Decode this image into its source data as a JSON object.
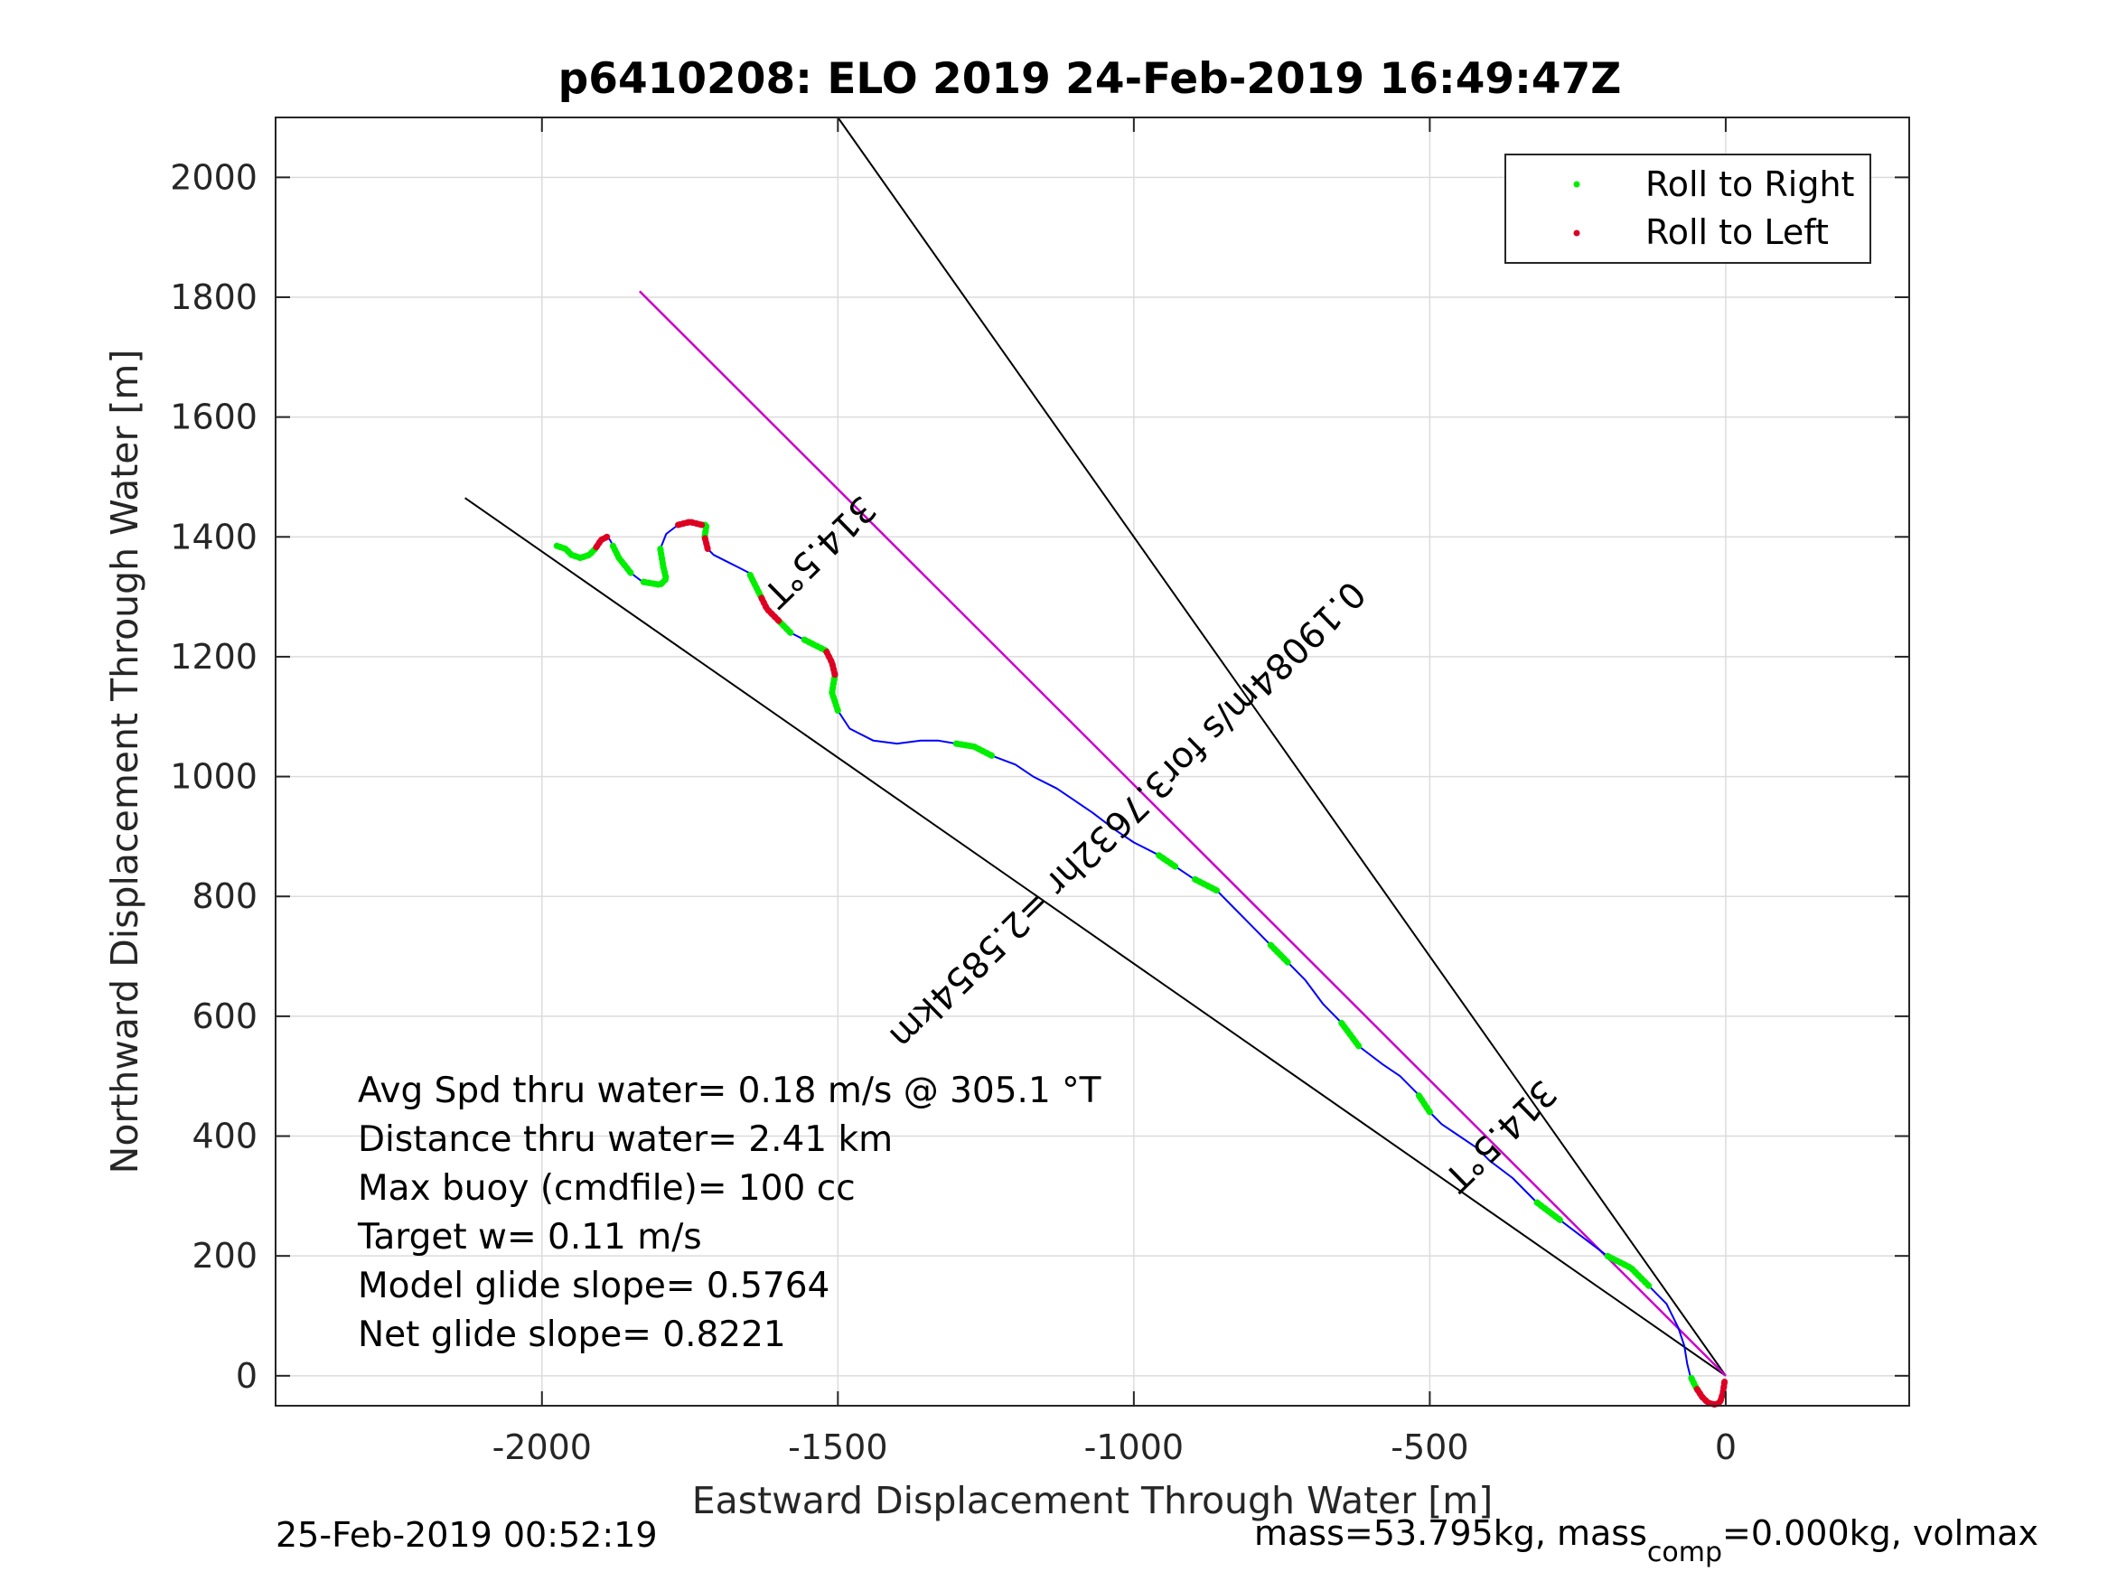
{
  "chart_data": {
    "type": "line",
    "title": "p6410208: ELO 2019 24-Feb-2019 16:49:47Z",
    "xlabel": "Eastward Displacement Through Water [m]",
    "ylabel": "Northward Displacement Through Water [m]",
    "xlim": [
      -2450,
      310
    ],
    "ylim": [
      -50,
      2100
    ],
    "xticks": [
      -2000,
      -1500,
      -1000,
      -500,
      0
    ],
    "yticks": [
      0,
      200,
      400,
      600,
      800,
      1000,
      1200,
      1400,
      1600,
      1800,
      2000
    ],
    "grid": true,
    "legend_position": "top-right",
    "legend": [
      {
        "label": "Roll to Right",
        "color": "#00ee00"
      },
      {
        "label": "Roll to Left",
        "color": "#dd0022"
      }
    ],
    "colors": {
      "track": "#0000ff",
      "heading_line": "#cc00cc",
      "guide_lines": "#000000"
    },
    "track": {
      "x": [
        -2,
        -5,
        -10,
        -18,
        -30,
        -40,
        -50,
        -55,
        -60,
        -65,
        -70,
        -80,
        -100,
        -130,
        -160,
        -200,
        -240,
        -280,
        -320,
        -360,
        -400,
        -420,
        -450,
        -480,
        -500,
        -520,
        -550,
        -580,
        -620,
        -650,
        -680,
        -710,
        -740,
        -770,
        -800,
        -830,
        -860,
        -900,
        -930,
        -960,
        -1000,
        -1030,
        -1070,
        -1100,
        -1130,
        -1170,
        -1200,
        -1240,
        -1270,
        -1300,
        -1330,
        -1360,
        -1400,
        -1440,
        -1480,
        -1500,
        -1510,
        -1505,
        -1510,
        -1520,
        -1540,
        -1560,
        -1580,
        -1600,
        -1620,
        -1630,
        -1640,
        -1650,
        -1670,
        -1690,
        -1710,
        -1720,
        -1725,
        -1722,
        -1730,
        -1750,
        -1770,
        -1790,
        -1800,
        -1795,
        -1790,
        -1800,
        -1830,
        -1850,
        -1870,
        -1880,
        -1885,
        -1890,
        -1900,
        -1910,
        -1920,
        -1935,
        -1950,
        -1960,
        -1975
      ],
      "y": [
        -10,
        -30,
        -45,
        -48,
        -45,
        -35,
        -20,
        -10,
        0,
        20,
        50,
        80,
        120,
        150,
        180,
        200,
        230,
        260,
        290,
        330,
        360,
        380,
        400,
        420,
        440,
        470,
        500,
        520,
        550,
        590,
        620,
        660,
        690,
        720,
        750,
        780,
        810,
        830,
        850,
        870,
        890,
        910,
        940,
        960,
        980,
        1000,
        1020,
        1035,
        1050,
        1055,
        1060,
        1060,
        1055,
        1060,
        1080,
        1110,
        1140,
        1170,
        1190,
        1210,
        1220,
        1230,
        1240,
        1260,
        1280,
        1300,
        1320,
        1340,
        1350,
        1360,
        1370,
        1380,
        1400,
        1420,
        1420,
        1425,
        1420,
        1405,
        1380,
        1350,
        1330,
        1320,
        1325,
        1340,
        1365,
        1385,
        1395,
        1400,
        1395,
        1380,
        1370,
        1365,
        1370,
        1380,
        1385
      ]
    },
    "heading_line": {
      "x": [
        0,
        -1835
      ],
      "y": [
        0,
        1810
      ]
    },
    "guide_line_1": {
      "x": [
        0,
        -1500
      ],
      "y": [
        0,
        2100
      ]
    },
    "guide_line_2": {
      "x": [
        0,
        -2130
      ],
      "y": [
        0,
        1465
      ]
    },
    "rotated_labels": [
      {
        "text": "314.5°T",
        "x": -1545,
        "y": 1390,
        "angle": -135.5
      },
      {
        "text": "314.5°T",
        "x": -395,
        "y": 415,
        "angle": -135.5
      },
      {
        "text": "0.19084m/s for3.7632hr =2.5854km",
        "x": -1025,
        "y": 950,
        "angle": -135.5
      }
    ],
    "annotations": [
      "Avg Spd thru water=  0.18 m/s @ 305.1 °T",
      "Distance thru water=  2.41 km",
      "Max buoy (cmdfile)= 100 cc",
      "Target w= 0.11 m/s",
      "Model glide slope= 0.5764",
      "Net glide slope= 0.8221"
    ]
  },
  "footer": {
    "timestamp": "25-Feb-2019 00:52:19",
    "mass_prefix": "mass=53.795kg, mass",
    "mass_sub": "comp",
    "mass_suffix": "=0.000kg, volmax"
  }
}
